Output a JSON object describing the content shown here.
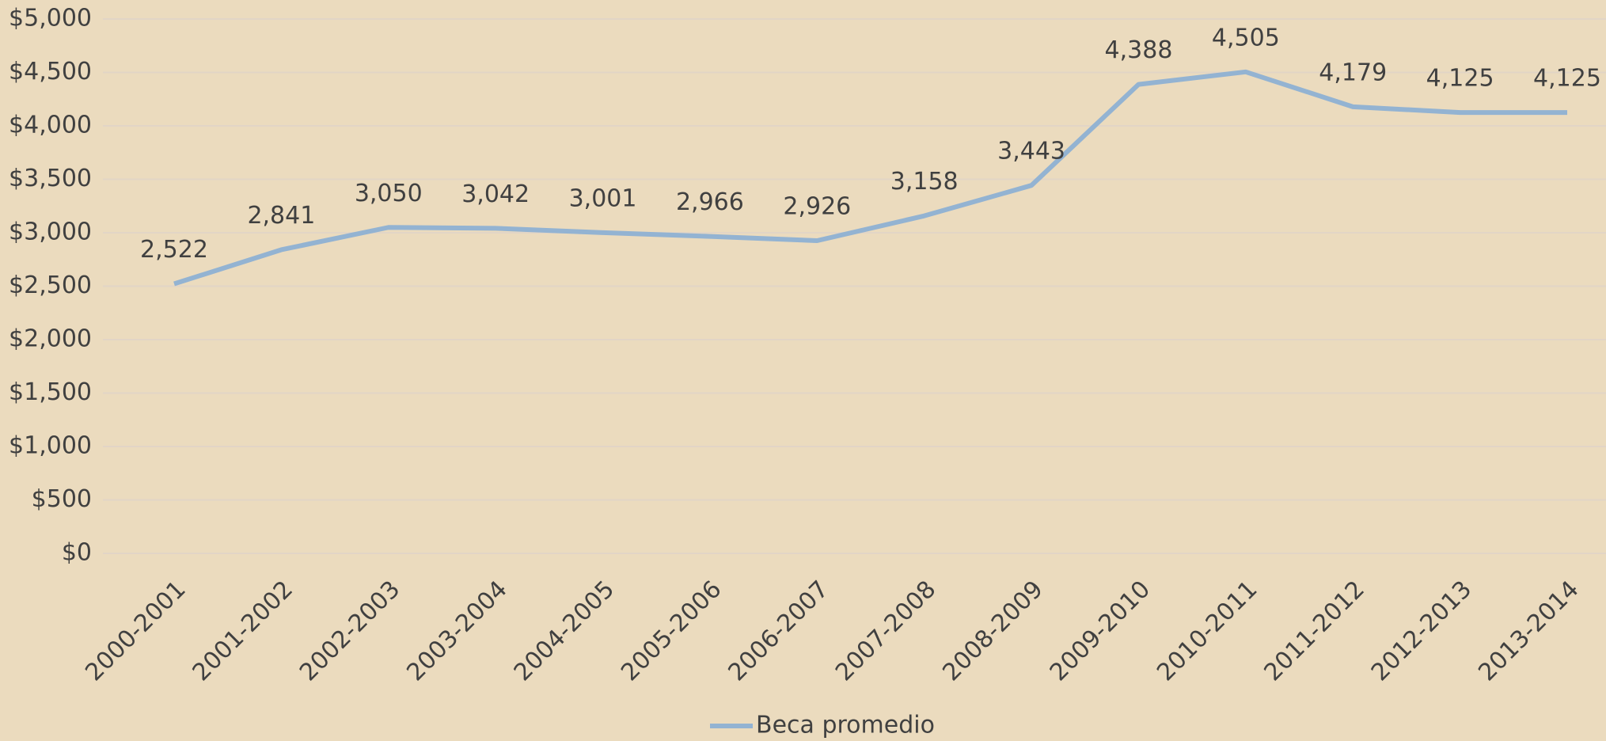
{
  "chart_data": {
    "type": "line",
    "categories": [
      "2000-2001",
      "2001-2002",
      "2002-2003",
      "2003-2004",
      "2004-2005",
      "2005-2006",
      "2006-2007",
      "2007-2008",
      "2008-2009",
      "2009-2010",
      "2010-2011",
      "2011-2012",
      "2012-2013",
      "2013-2014"
    ],
    "series": [
      {
        "name": "Beca promedio",
        "color": "#93b3d2",
        "values": [
          2522,
          2841,
          3050,
          3042,
          3001,
          2966,
          2926,
          3158,
          3443,
          4388,
          4505,
          4179,
          4125,
          4125
        ],
        "value_labels": [
          "2,522",
          "2,841",
          "3,050",
          "3,042",
          "3,001",
          "2,966",
          "2,926",
          "3,158",
          "3,443",
          "4,388",
          "4,505",
          "4,179",
          "4,125",
          "4,125"
        ]
      }
    ],
    "ylim": [
      0,
      5000
    ],
    "yticks": [
      {
        "value": 0,
        "label": "$0"
      },
      {
        "value": 500,
        "label": "$500"
      },
      {
        "value": 1000,
        "label": "$1,000"
      },
      {
        "value": 1500,
        "label": "$1,500"
      },
      {
        "value": 2000,
        "label": "$2,000"
      },
      {
        "value": 2500,
        "label": "$2,500"
      },
      {
        "value": 3000,
        "label": "$3,000"
      },
      {
        "value": 3500,
        "label": "$3,500"
      },
      {
        "value": 4000,
        "label": "$4,000"
      },
      {
        "value": 4500,
        "label": "$4,500"
      },
      {
        "value": 5000,
        "label": "$5,000"
      }
    ],
    "grid": true,
    "legend": "bottom"
  }
}
